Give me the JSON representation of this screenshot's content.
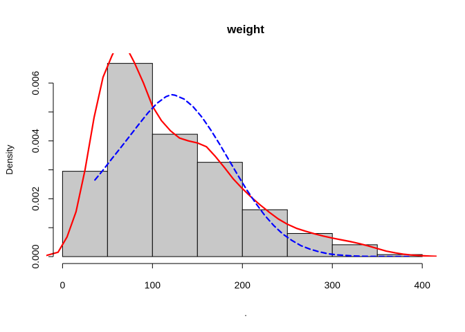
{
  "chart_data": {
    "type": "histogram",
    "title": "weight",
    "xlabel": ".",
    "ylabel": "Density",
    "xlim": [
      -18,
      416
    ],
    "ylim": [
      0,
      0.00703
    ],
    "xticks": [
      0,
      100,
      200,
      300,
      400
    ],
    "xtick_labels": [
      "0",
      "100",
      "200",
      "300",
      "400"
    ],
    "yticks": [
      0,
      0.001,
      0.002,
      0.003,
      0.004,
      0.005,
      0.006
    ],
    "ytick_labels": [
      "0.000",
      "",
      "0.002",
      "",
      "0.004",
      "",
      "0.006"
    ],
    "grid": false,
    "bin_edges": [
      0,
      50,
      100,
      150,
      200,
      250,
      300,
      350,
      400
    ],
    "bin_densities": [
      0.00295,
      0.00668,
      0.00423,
      0.00326,
      0.00162,
      0.0008,
      0.00041,
      7e-05
    ],
    "bar_fill": "#c8c8c8",
    "bar_stroke": "#000000",
    "series": [
      {
        "style": "solid",
        "color": "#ff0000",
        "x": [
          -18,
          -5,
          5,
          15,
          25,
          35,
          45,
          55,
          62,
          67,
          75,
          80,
          90,
          100,
          110,
          120,
          130,
          140,
          150,
          160,
          170,
          180,
          190,
          200,
          210,
          220,
          230,
          240,
          250,
          260,
          270,
          280,
          290,
          300,
          310,
          320,
          330,
          340,
          350,
          360,
          370,
          380,
          390,
          400,
          410,
          416
        ],
        "y": [
          4e-05,
          0.00015,
          0.00068,
          0.00155,
          0.003,
          0.0048,
          0.0062,
          0.00695,
          0.0074,
          0.00745,
          0.007,
          0.0067,
          0.006,
          0.0052,
          0.0047,
          0.00435,
          0.0041,
          0.004,
          0.00393,
          0.0038,
          0.00346,
          0.00308,
          0.00268,
          0.00235,
          0.00205,
          0.00178,
          0.00153,
          0.0013,
          0.00112,
          0.00098,
          0.00088,
          0.00079,
          0.00071,
          0.00064,
          0.00058,
          0.00052,
          0.00045,
          0.00037,
          0.00028,
          0.00019,
          0.00013,
          8e-05,
          5e-05,
          3e-05,
          1.5e-05,
          1e-05
        ]
      },
      {
        "style": "dashed",
        "color": "#0000ff",
        "x": [
          36,
          45,
          55,
          65,
          75,
          85,
          95,
          105,
          115,
          121,
          125,
          135,
          145,
          155,
          165,
          175,
          185,
          195,
          205,
          215,
          225,
          235,
          245,
          255,
          265,
          275,
          285,
          295,
          305,
          315,
          325,
          335,
          345,
          355,
          365,
          375,
          385
        ],
        "y": [
          0.00265,
          0.00299,
          0.00339,
          0.00378,
          0.00418,
          0.00458,
          0.00497,
          0.0053,
          0.00553,
          0.0056,
          0.00558,
          0.00545,
          0.00519,
          0.00482,
          0.00437,
          0.00387,
          0.00334,
          0.00281,
          0.0023,
          0.00184,
          0.00142,
          0.00107,
          0.00078,
          0.00056,
          0.00038,
          0.00026,
          0.00017,
          0.0001,
          6e-05,
          4e-05,
          2e-05,
          1e-05,
          7e-06,
          4e-06,
          2e-06,
          1e-06,
          5e-07
        ]
      }
    ]
  }
}
